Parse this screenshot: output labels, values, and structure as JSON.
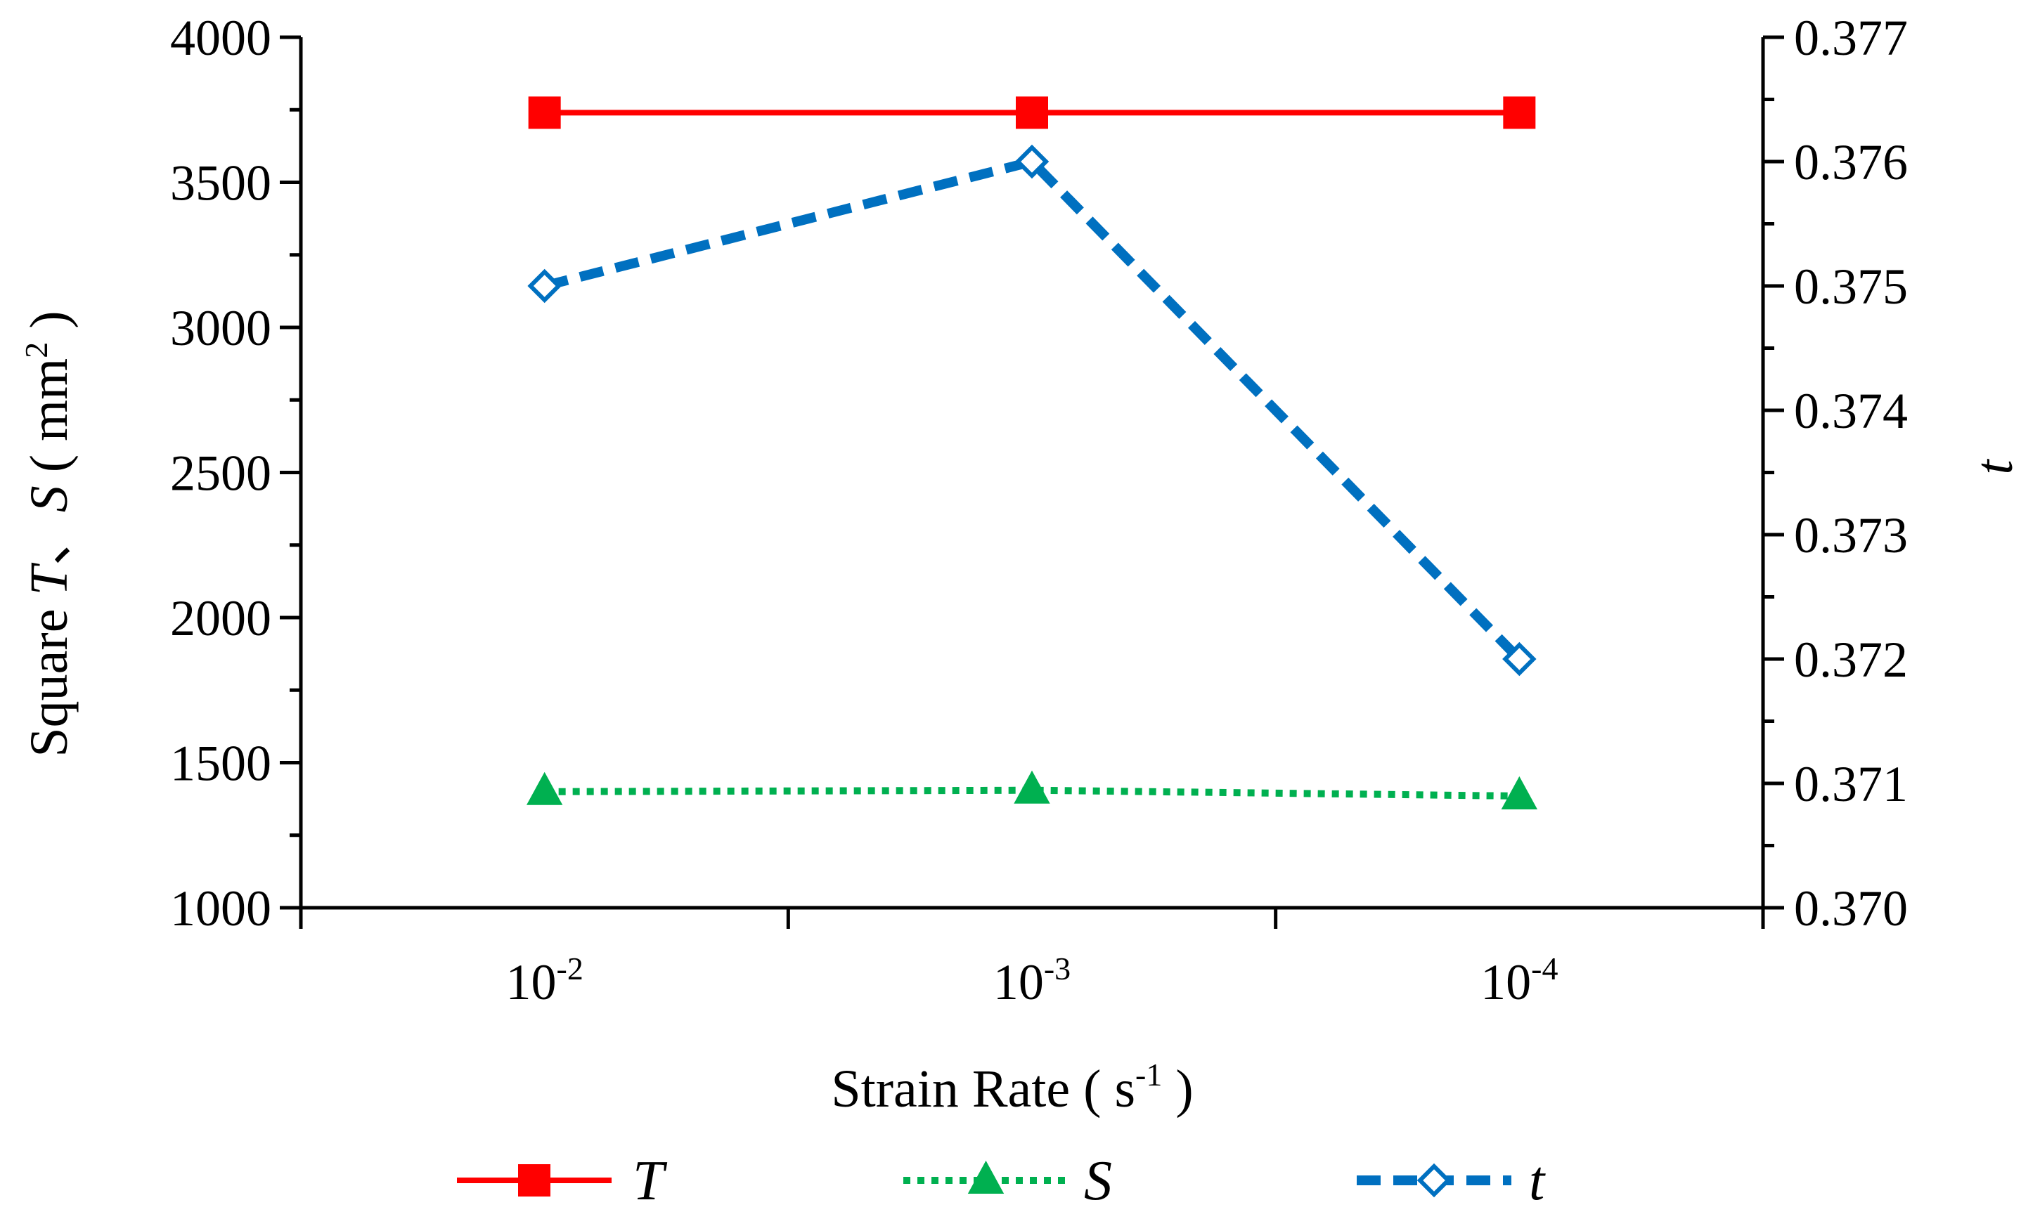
{
  "chart_data": {
    "type": "line",
    "categories": [
      "10-2",
      "10-3",
      "10-4"
    ],
    "x_ticks": [
      {
        "base": "10",
        "exp": "-2"
      },
      {
        "base": "10",
        "exp": "-3"
      },
      {
        "base": "10",
        "exp": "-4"
      }
    ],
    "xlabel": {
      "main": "Strain Rate ( s",
      "exp": "-1",
      "close": " )"
    },
    "ylabel_left": {
      "prefix": "Square ",
      "t": "T",
      "sep": "、",
      "s": "S",
      "unit_open": " ( mm",
      "unit_exp": "2",
      "unit_close": " )"
    },
    "ylabel_right": "t",
    "y_left": {
      "min": 1000,
      "max": 4000,
      "step": 500,
      "ticks": [
        "1000",
        "1500",
        "2000",
        "2500",
        "3000",
        "3500",
        "4000"
      ]
    },
    "y_right": {
      "min": 0.37,
      "max": 0.377,
      "step": 0.001,
      "ticks": [
        "0.370",
        "0.371",
        "0.372",
        "0.373",
        "0.374",
        "0.375",
        "0.376",
        "0.377"
      ]
    },
    "series": [
      {
        "name": "T",
        "axis": "left",
        "color": "#ff0000",
        "line": "solid",
        "marker": "square",
        "values": [
          3740,
          3740,
          3740
        ]
      },
      {
        "name": "S",
        "axis": "left",
        "color": "#00b050",
        "line": "dotted",
        "marker": "triangle",
        "values": [
          1400,
          1405,
          1385
        ]
      },
      {
        "name": "t",
        "axis": "right",
        "color": "#0070c0",
        "line": "dashed",
        "marker": "diamond",
        "values": [
          0.375,
          0.376,
          0.372
        ]
      }
    ],
    "legend": {
      "position": "bottom",
      "entries": [
        "T",
        "S",
        "t"
      ]
    }
  }
}
